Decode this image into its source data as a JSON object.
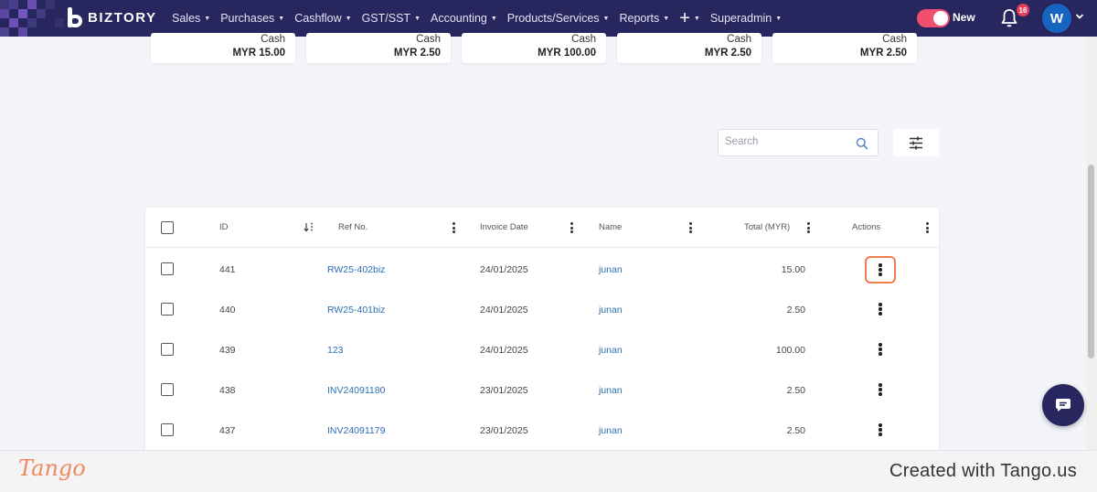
{
  "brand": {
    "name": "BIZTORY"
  },
  "nav": {
    "items": [
      {
        "label": "Sales"
      },
      {
        "label": "Purchases"
      },
      {
        "label": "Cashflow"
      },
      {
        "label": "GST/SST"
      },
      {
        "label": "Accounting"
      },
      {
        "label": "Products/Services"
      },
      {
        "label": "Reports"
      },
      {
        "label": "+"
      },
      {
        "label": "Superadmin"
      }
    ],
    "toggle_label": "New",
    "notification_count": "16",
    "avatar_initial": "W",
    "colors": {
      "navbar": "#28265f",
      "toggle": "#f0506e",
      "avatar": "#1565c0",
      "badge": "#e83d5a"
    }
  },
  "cards": [
    {
      "label": "Cash",
      "amount": "MYR 15.00"
    },
    {
      "label": "Cash",
      "amount": "MYR 2.50"
    },
    {
      "label": "Cash",
      "amount": "MYR 100.00"
    },
    {
      "label": "Cash",
      "amount": "MYR 2.50"
    },
    {
      "label": "Cash",
      "amount": "MYR 2.50"
    }
  ],
  "search": {
    "placeholder": "Search"
  },
  "table": {
    "headers": {
      "id": "ID",
      "ref": "Ref No.",
      "date": "Invoice Date",
      "name": "Name",
      "total": "Total (MYR)",
      "actions": "Actions"
    },
    "rows": [
      {
        "id": "441",
        "ref": "RW25-402biz",
        "date": "24/01/2025",
        "name": "junan",
        "total": "15.00"
      },
      {
        "id": "440",
        "ref": "RW25-401biz",
        "date": "24/01/2025",
        "name": "junan",
        "total": "2.50"
      },
      {
        "id": "439",
        "ref": "123",
        "date": "24/01/2025",
        "name": "junan",
        "total": "100.00"
      },
      {
        "id": "438",
        "ref": "INV24091180",
        "date": "23/01/2025",
        "name": "junan",
        "total": "2.50"
      },
      {
        "id": "437",
        "ref": "INV24091179",
        "date": "23/01/2025",
        "name": "junan",
        "total": "2.50"
      }
    ],
    "link_color": "#2d6fb2",
    "highlight_color": "#f07c4a"
  },
  "footer": {
    "logo": "Tango",
    "created": "Created with Tango.us"
  }
}
